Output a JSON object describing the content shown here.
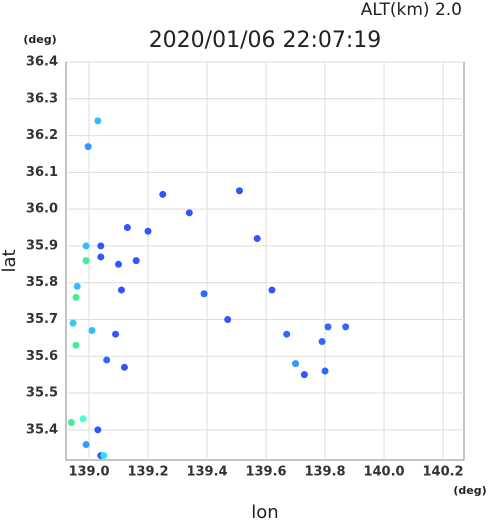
{
  "chart_data": {
    "type": "scatter",
    "title": "2020/01/06 22:07:19",
    "subtitle": "ALT(km) 2.0",
    "y_unit": "(deg)",
    "x_unit": "(deg)",
    "x_label": "lon",
    "y_label": "lat",
    "xlim": [
      138.922,
      140.271
    ],
    "ylim": [
      35.318,
      36.4
    ],
    "xticks": [
      {
        "value": 139,
        "label": "139.0"
      },
      139.2,
      139.4,
      139.6,
      139.8,
      {
        "value": 140,
        "label": "140.0"
      },
      140.2
    ],
    "yticks": [
      35.4,
      35.5,
      35.6,
      35.7,
      35.8,
      35.9,
      {
        "value": 36,
        "label": "36.0"
      },
      36.1,
      36.2,
      36.3,
      36.4
    ],
    "grid": true,
    "x": [
      139.03,
      138.997,
      138.99,
      138.99,
      139.04,
      139.04,
      138.96,
      138.956,
      138.946,
      138.956,
      139.01,
      139.09,
      139.06,
      139.12,
      138.98,
      138.94,
      138.99,
      139.04,
      139.05,
      139.03,
      139.11,
      139.13,
      139.2,
      139.25,
      139.34,
      139.51,
      139.57,
      139.39,
      139.47,
      139.62,
      139.67,
      139.7,
      139.73,
      139.81,
      139.87,
      139.79,
      139.8,
      139.16,
      139.1
    ],
    "y": [
      36.24,
      36.17,
      35.9,
      35.86,
      35.9,
      35.87,
      35.79,
      35.76,
      35.69,
      35.63,
      35.67,
      35.66,
      35.59,
      35.57,
      35.43,
      35.42,
      35.36,
      35.33,
      35.33,
      35.4,
      35.78,
      35.95,
      35.94,
      36.04,
      35.99,
      36.05,
      35.92,
      35.77,
      35.7,
      35.78,
      35.66,
      35.58,
      35.55,
      35.68,
      35.68,
      35.64,
      35.56,
      35.86,
      35.85
    ],
    "colors": [
      "#33bbff",
      "#3399ff",
      "#33bbff",
      "#44ee99",
      "#3355ff",
      "#3355ff",
      "#33bbff",
      "#44ee99",
      "#33ccee",
      "#44ee99",
      "#33bbff",
      "#3355ff",
      "#3366ff",
      "#3355ff",
      "#44ffcc",
      "#44ee99",
      "#3399ff",
      "#3355ff",
      "#33ddee",
      "#3355ff",
      "#3355ff",
      "#3355ff",
      "#3355ff",
      "#3355ff",
      "#3355ff",
      "#3355ff",
      "#3355ff",
      "#3366ff",
      "#3355ff",
      "#3355ff",
      "#3366ff",
      "#3399ff",
      "#3355ff",
      "#3366ff",
      "#3366ff",
      "#3366ff",
      "#3366ff",
      "#3355ff",
      "#3355ff"
    ]
  }
}
